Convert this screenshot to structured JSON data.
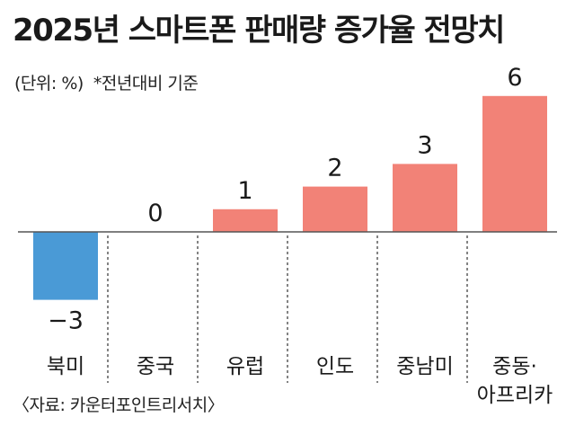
{
  "header": {
    "title": "2025년 스마트폰 판매량 증가율 전망치",
    "unit_note": "(단위: %)",
    "basis_note": "*전년대비 기준"
  },
  "footer": {
    "source": "〈자료: 카운터포인트리서치〉"
  },
  "colors": {
    "positive": "#f28277",
    "negative": "#4a9ad6",
    "baseline": "#555555",
    "divider": "#333333"
  },
  "chart_data": {
    "type": "bar",
    "title": "2025년 스마트폰 판매량 증가율 전망치",
    "categories": [
      "북미",
      "중국",
      "유럽",
      "인도",
      "중남미",
      "중동·아프리카"
    ],
    "category_lines": [
      [
        "북미"
      ],
      [
        "중국"
      ],
      [
        "유럽"
      ],
      [
        "인도"
      ],
      [
        "중남미"
      ],
      [
        "중동·",
        "아프리카"
      ]
    ],
    "values": [
      -3,
      0,
      1,
      2,
      3,
      6
    ],
    "value_labels": [
      "−3",
      "0",
      "1",
      "2",
      "3",
      "6"
    ],
    "xlabel": "",
    "ylabel": "%",
    "ylim": [
      -3,
      6
    ],
    "grid": false,
    "legend": "none"
  }
}
